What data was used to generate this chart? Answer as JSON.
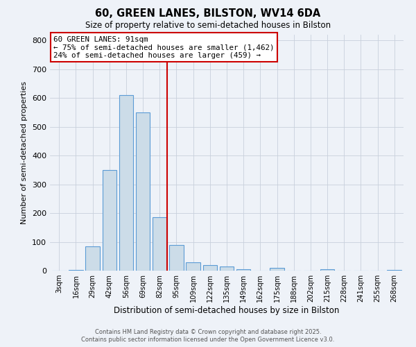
{
  "title": "60, GREEN LANES, BILSTON, WV14 6DA",
  "subtitle": "Size of property relative to semi-detached houses in Bilston",
  "xlabel": "Distribution of semi-detached houses by size in Bilston",
  "ylabel": "Number of semi-detached properties",
  "footer1": "Contains HM Land Registry data © Crown copyright and database right 2025.",
  "footer2": "Contains public sector information licensed under the Open Government Licence v3.0.",
  "categories": [
    "3sqm",
    "16sqm",
    "29sqm",
    "42sqm",
    "56sqm",
    "69sqm",
    "82sqm",
    "95sqm",
    "109sqm",
    "122sqm",
    "135sqm",
    "149sqm",
    "162sqm",
    "175sqm",
    "188sqm",
    "202sqm",
    "215sqm",
    "228sqm",
    "241sqm",
    "255sqm",
    "268sqm"
  ],
  "values": [
    0,
    2,
    85,
    350,
    610,
    550,
    185,
    90,
    30,
    20,
    15,
    5,
    0,
    10,
    0,
    0,
    5,
    0,
    0,
    0,
    2
  ],
  "bar_color": "#ccdce8",
  "bar_edge_color": "#5b9bd5",
  "grid_color": "#c8d0dc",
  "background_color": "#eef2f8",
  "vline_x_index": 6.45,
  "vline_color": "#cc0000",
  "annotation_line1": "60 GREEN LANES: 91sqm",
  "annotation_line2": "← 75% of semi-detached houses are smaller (1,462)",
  "annotation_line3": "24% of semi-detached houses are larger (459) →",
  "annotation_box_color": "#cc0000",
  "ylim": [
    0,
    820
  ],
  "yticks": [
    0,
    100,
    200,
    300,
    400,
    500,
    600,
    700,
    800
  ]
}
